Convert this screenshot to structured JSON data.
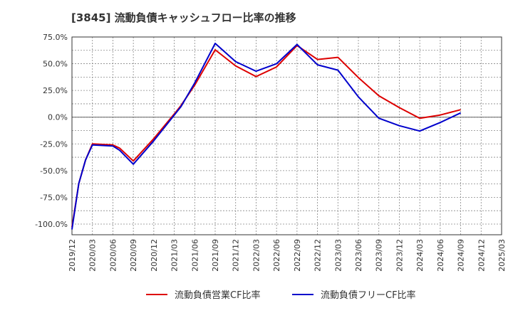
{
  "chart_data": {
    "type": "line",
    "title": "[3845]  流動負債キャッシュフロー比率の推移",
    "xlabel": "",
    "ylabel": "",
    "ylim": [
      -110,
      75
    ],
    "yticks": [
      75,
      50,
      25,
      0,
      -25,
      -50,
      -75,
      -100
    ],
    "ytick_labels": [
      "75.0%",
      "50.0%",
      "25.0%",
      "0.0%",
      "-25.0%",
      "-50.0%",
      "-75.0%",
      "-100.0%"
    ],
    "xtick_labels": [
      "2019/12",
      "2020/03",
      "2020/06",
      "2020/09",
      "2020/12",
      "2021/03",
      "2021/06",
      "2021/09",
      "2021/12",
      "2022/03",
      "2022/06",
      "2022/09",
      "2022/12",
      "2023/03",
      "2023/06",
      "2023/09",
      "2023/12",
      "2024/03",
      "2024/06",
      "2024/09",
      "2024/12",
      "2025/03"
    ],
    "grid": true,
    "legend_position": "bottom",
    "series": [
      {
        "name": "流動負債営業CF比率",
        "color": "#dd0000",
        "points": [
          [
            "2019/12",
            -103
          ],
          [
            "2020/01",
            -62
          ],
          [
            "2020/02",
            -40
          ],
          [
            "2020/03",
            -25
          ],
          [
            "2020/06",
            -26
          ],
          [
            "2020/07",
            -29
          ],
          [
            "2020/09",
            -41
          ],
          [
            "2020/12",
            -20
          ],
          [
            "2021/03",
            3
          ],
          [
            "2021/04",
            11
          ],
          [
            "2021/06",
            30
          ],
          [
            "2021/09",
            63
          ],
          [
            "2021/12",
            48
          ],
          [
            "2022/03",
            38
          ],
          [
            "2022/06",
            47
          ],
          [
            "2022/09",
            67
          ],
          [
            "2022/12",
            54
          ],
          [
            "2023/03",
            56
          ],
          [
            "2023/06",
            37
          ],
          [
            "2023/09",
            20
          ],
          [
            "2023/12",
            9
          ],
          [
            "2024/03",
            -1
          ],
          [
            "2024/06",
            2
          ],
          [
            "2024/09",
            7
          ]
        ]
      },
      {
        "name": "流動負債フリーCF比率",
        "color": "#0000cc",
        "points": [
          [
            "2019/12",
            -105
          ],
          [
            "2020/01",
            -62
          ],
          [
            "2020/02",
            -40
          ],
          [
            "2020/03",
            -26
          ],
          [
            "2020/06",
            -27
          ],
          [
            "2020/07",
            -31
          ],
          [
            "2020/09",
            -44
          ],
          [
            "2020/12",
            -22
          ],
          [
            "2021/03",
            2
          ],
          [
            "2021/04",
            10
          ],
          [
            "2021/06",
            32
          ],
          [
            "2021/09",
            69
          ],
          [
            "2021/12",
            52
          ],
          [
            "2022/03",
            43
          ],
          [
            "2022/06",
            50
          ],
          [
            "2022/09",
            68
          ],
          [
            "2022/12",
            49
          ],
          [
            "2023/03",
            44
          ],
          [
            "2023/06",
            19
          ],
          [
            "2023/09",
            -1
          ],
          [
            "2023/12",
            -8
          ],
          [
            "2024/03",
            -13
          ],
          [
            "2024/06",
            -5
          ],
          [
            "2024/09",
            4
          ]
        ]
      }
    ]
  }
}
